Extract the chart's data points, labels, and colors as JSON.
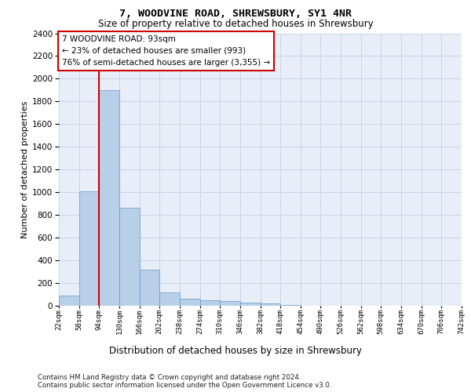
{
  "title": "7, WOODVINE ROAD, SHREWSBURY, SY1 4NR",
  "subtitle": "Size of property relative to detached houses in Shrewsbury",
  "xlabel": "Distribution of detached houses by size in Shrewsbury",
  "ylabel": "Number of detached properties",
  "footnote1": "Contains HM Land Registry data © Crown copyright and database right 2024.",
  "footnote2": "Contains public sector information licensed under the Open Government Licence v3.0.",
  "bin_labels": [
    "22sqm",
    "58sqm",
    "94sqm",
    "130sqm",
    "166sqm",
    "202sqm",
    "238sqm",
    "274sqm",
    "310sqm",
    "346sqm",
    "382sqm",
    "418sqm",
    "454sqm",
    "490sqm",
    "526sqm",
    "562sqm",
    "598sqm",
    "634sqm",
    "670sqm",
    "706sqm",
    "742sqm"
  ],
  "bar_values": [
    90,
    1010,
    1900,
    860,
    315,
    115,
    60,
    50,
    40,
    25,
    20,
    5,
    3,
    2,
    1,
    1,
    0,
    0,
    0,
    0
  ],
  "bar_color": "#b8cfe8",
  "bar_edge_color": "#6699cc",
  "ylim": [
    0,
    2400
  ],
  "yticks": [
    0,
    200,
    400,
    600,
    800,
    1000,
    1200,
    1400,
    1600,
    1800,
    2000,
    2200,
    2400
  ],
  "red_line_x": 2,
  "annotation_text_line1": "7 WOODVINE ROAD: 93sqm",
  "annotation_text_line2": "← 23% of detached houses are smaller (993)",
  "annotation_text_line3": "76% of semi-detached houses are larger (3,355) →",
  "annotation_box_color": "#ffffff",
  "annotation_border_color": "#cc0000",
  "grid_color": "#c8d4e8",
  "background_color": "#e8eef8"
}
